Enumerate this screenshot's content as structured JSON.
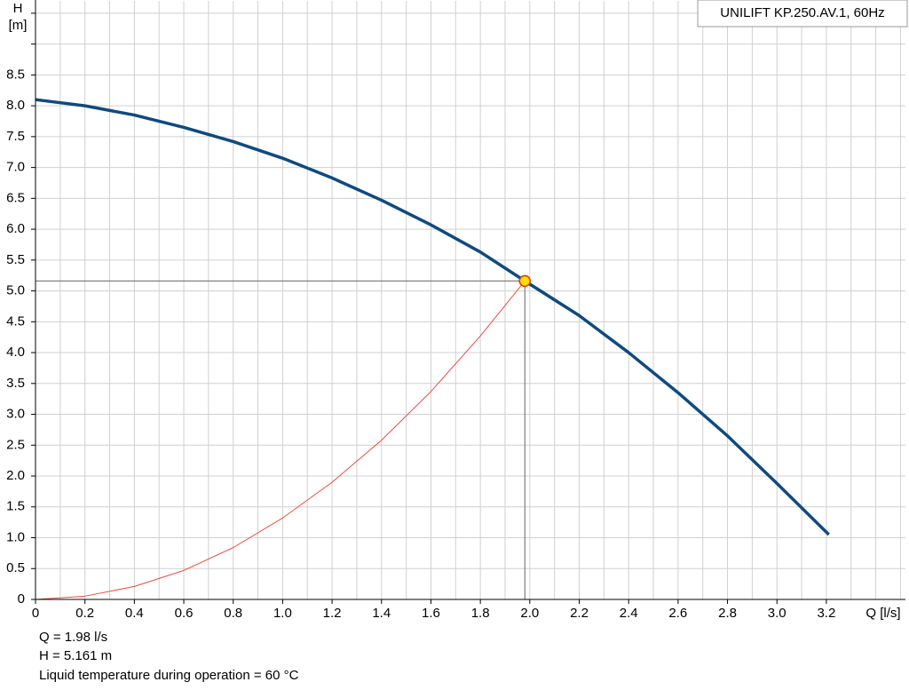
{
  "chart_data": {
    "type": "line",
    "title": "UNILIFT KP.250.AV.1, 60Hz",
    "y_label_top": "H",
    "y_label_unit": "[m]",
    "x_label": "Q [l/s]",
    "xlim": [
      0,
      3.52
    ],
    "ylim": [
      0,
      9.7
    ],
    "xticks": [
      0,
      0.2,
      0.4,
      0.6,
      0.8,
      {
        "value": 1,
        "label": "1.0"
      },
      1.2,
      1.4,
      1.6,
      1.8,
      {
        "value": 2,
        "label": "2.0"
      },
      2.2,
      2.4,
      2.6,
      2.8,
      {
        "value": 3,
        "label": "3.0"
      },
      3.2
    ],
    "xminor": [
      0.1,
      0.3,
      0.5,
      0.7,
      0.9,
      1.1,
      1.3,
      1.5,
      1.7,
      1.9,
      2.1,
      2.3,
      2.5,
      2.7,
      2.9,
      3.1,
      3.3,
      3.4,
      3.5
    ],
    "yticks": [
      0,
      0.5,
      {
        "value": 1,
        "label": "1.0"
      },
      1.5,
      {
        "value": 2,
        "label": "2.0"
      },
      2.5,
      {
        "value": 3,
        "label": "3.0"
      },
      3.5,
      {
        "value": 4,
        "label": "4.0"
      },
      4.5,
      {
        "value": 5,
        "label": "5.0"
      },
      5.5,
      {
        "value": 6,
        "label": "6.0"
      },
      6.5,
      {
        "value": 7,
        "label": "7.0"
      },
      7.5,
      {
        "value": 8,
        "label": "8.0"
      },
      8.5
    ],
    "yminor": [
      9,
      9.5
    ],
    "grid": true,
    "series": [
      {
        "color": "#0f4a80",
        "x": [
          0,
          0.2,
          0.4,
          0.6,
          0.8,
          1.0,
          1.2,
          1.4,
          1.6,
          1.8,
          1.98,
          2.2,
          2.4,
          2.6,
          2.8,
          3.0,
          3.21
        ],
        "values": [
          8.1,
          8.0,
          7.85,
          7.65,
          7.42,
          7.15,
          6.83,
          6.47,
          6.07,
          5.63,
          5.161,
          4.6,
          4.0,
          3.35,
          2.65,
          1.88,
          1.05
        ]
      },
      {
        "color": "#ee4a40",
        "x": [
          0,
          0.2,
          0.4,
          0.6,
          0.8,
          1.0,
          1.2,
          1.4,
          1.6,
          1.8,
          1.98
        ],
        "values": [
          0,
          0.053,
          0.21,
          0.47,
          0.84,
          1.32,
          1.9,
          2.58,
          3.37,
          4.27,
          5.161
        ]
      }
    ],
    "operating_point": {
      "x": 1.98,
      "y": 5.161
    },
    "annotations": [
      "Q = 1.98 l/s",
      "H = 5.161 m",
      "Liquid temperature during operation = 60 °C"
    ]
  }
}
